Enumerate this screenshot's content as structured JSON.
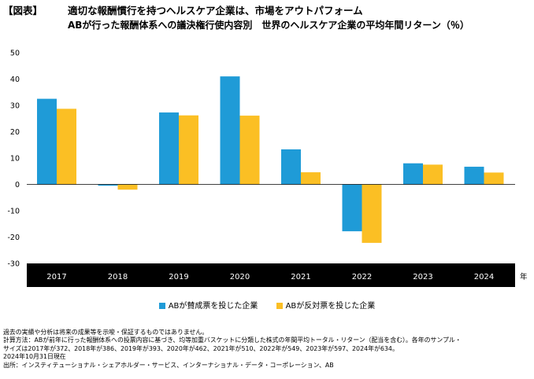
{
  "header": {
    "tag": "【図表】",
    "title": "適切な報酬慣行を持つヘルスケア企業は、市場をアウトパフォーム",
    "subtitle": "ABが行った報酬体系への議決権行使内容別　世界のヘルスケア企業の平均年間リターン（％）"
  },
  "chart_data": {
    "type": "bar",
    "categories": [
      "2017",
      "2018",
      "2019",
      "2020",
      "2021",
      "2022",
      "2023",
      "2024"
    ],
    "series": [
      {
        "name": "ABが賛成票を投じた企業",
        "color": "#1f9bd7",
        "values": [
          32.5,
          -0.5,
          27.3,
          41.0,
          13.3,
          -17.8,
          8.0,
          6.7
        ]
      },
      {
        "name": "ABが反対票を投じた企業",
        "color": "#fbbf24",
        "values": [
          28.7,
          -2.0,
          26.2,
          26.1,
          4.6,
          -22.2,
          7.5,
          4.5
        ]
      }
    ],
    "ylim": [
      -30,
      50
    ],
    "yticks": [
      50,
      40,
      30,
      20,
      10,
      0,
      -10,
      -20,
      -30
    ],
    "xlabel": "年",
    "ylabel": "",
    "grid": false,
    "legend": "bottom"
  },
  "notes": [
    "過去の実績や分析は将来の成果等を示唆・保証するものではありません。",
    "計算方法：ABが前年に行った報酬体系への投票内容に基づき、均等加重バスケットに分類した株式の年間平均トータル・リターン（配当を含む）。各年のサンプル・",
    "サイズは2017年が372、2018年が386、2019年が393、2020年が462、2021年が510、2022年が549、2023年が597、2024年が634。",
    "2024年10月31日現在",
    "出所：インスティテューショナル・シェアホルダー・サービス、インターナショナル・データ・コーポレーション、AB"
  ]
}
